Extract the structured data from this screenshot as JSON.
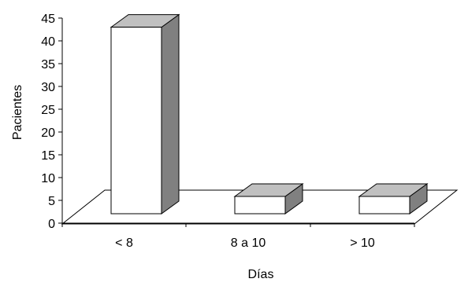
{
  "chart_data": {
    "type": "bar",
    "categories": [
      "< 8",
      "8 a 10",
      "> 10"
    ],
    "values": [
      43,
      4,
      5
    ],
    "xlabel": "Días",
    "ylabel": "Pacientes",
    "ylim": [
      0,
      45
    ],
    "yticks": [
      "0",
      "5",
      "10",
      "15",
      "20",
      "25",
      "30",
      "35",
      "40",
      "45"
    ],
    "grid": false,
    "legend": "none",
    "three_d": true,
    "colors": {
      "bar_front": "#ffffff",
      "bar_top": "#c0c0c0",
      "bar_side": "#808080",
      "outline": "#000000"
    }
  }
}
